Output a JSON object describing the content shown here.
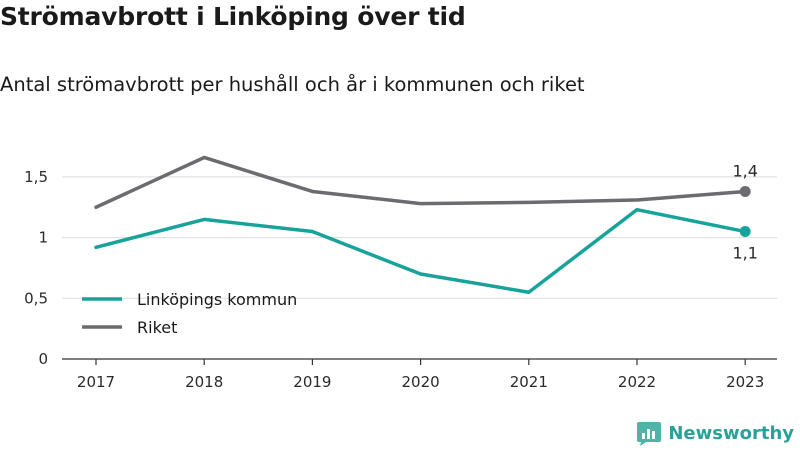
{
  "title": "Strömavbrott i Linköping över tid",
  "subtitle": "Antal strömavbrott per hushåll och år i kommunen och riket",
  "brand": "Newsworthy",
  "colors": {
    "kommun": "#18a39a",
    "riket": "#6b6b70",
    "grid": "#dcdcdc",
    "axis": "#333333",
    "brand": "#2aa198"
  },
  "chart_data": {
    "type": "line",
    "categories": [
      "2017",
      "2018",
      "2019",
      "2020",
      "2021",
      "2022",
      "2023"
    ],
    "y_ticks": [
      "0",
      "0,5",
      "1",
      "1,5"
    ],
    "ylim": [
      0,
      1.75
    ],
    "grid": true,
    "legend_position": "bottom-left",
    "series": [
      {
        "name": "Linköpings kommun",
        "values": [
          0.92,
          1.15,
          1.05,
          0.7,
          0.55,
          1.23,
          1.05
        ],
        "end_label": "1,1"
      },
      {
        "name": "Riket",
        "values": [
          1.25,
          1.66,
          1.38,
          1.28,
          1.29,
          1.31,
          1.38
        ],
        "end_label": "1,4"
      }
    ]
  }
}
